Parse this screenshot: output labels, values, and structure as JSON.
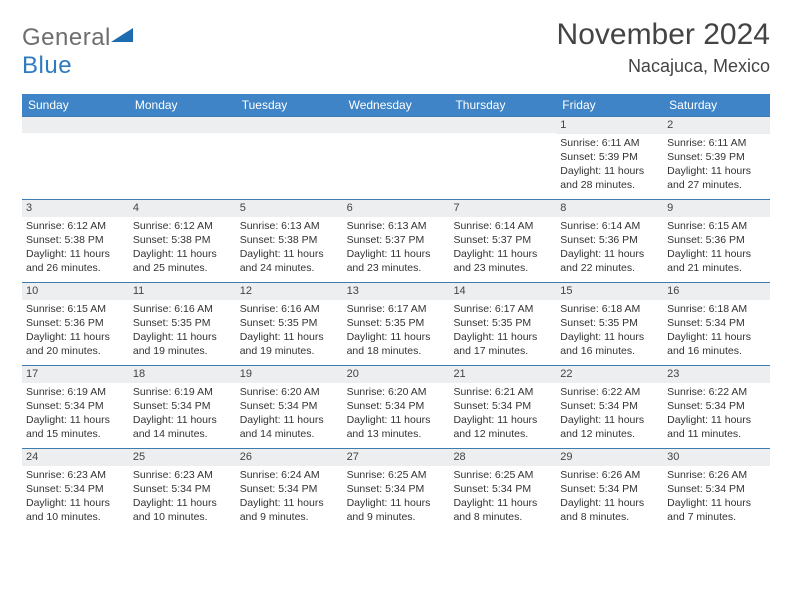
{
  "logo": {
    "text_gray": "General",
    "text_blue": "Blue"
  },
  "header": {
    "month_title": "November 2024",
    "location": "Nacajuca, Mexico",
    "month_title_fontsize": 30,
    "location_fontsize": 18,
    "text_color": "#444444"
  },
  "theme": {
    "header_bg": "#3e84c6",
    "header_text": "#ffffff",
    "row_border": "#3e7bb0",
    "dayband_bg": "#eceef0",
    "body_text": "#333333",
    "logo_gray": "#6e6e6e",
    "logo_blue": "#2f7bbf",
    "logo_triangle": "#1f6bb0",
    "page_bg": "#ffffff",
    "cell_fontsize": 10.5,
    "header_fontsize": 12
  },
  "day_labels": [
    "Sunday",
    "Monday",
    "Tuesday",
    "Wednesday",
    "Thursday",
    "Friday",
    "Saturday"
  ],
  "weeks": [
    [
      {
        "n": "",
        "sunrise": "",
        "sunset": "",
        "daylight": ""
      },
      {
        "n": "",
        "sunrise": "",
        "sunset": "",
        "daylight": ""
      },
      {
        "n": "",
        "sunrise": "",
        "sunset": "",
        "daylight": ""
      },
      {
        "n": "",
        "sunrise": "",
        "sunset": "",
        "daylight": ""
      },
      {
        "n": "",
        "sunrise": "",
        "sunset": "",
        "daylight": ""
      },
      {
        "n": "1",
        "sunrise": "Sunrise: 6:11 AM",
        "sunset": "Sunset: 5:39 PM",
        "daylight": "Daylight: 11 hours and 28 minutes."
      },
      {
        "n": "2",
        "sunrise": "Sunrise: 6:11 AM",
        "sunset": "Sunset: 5:39 PM",
        "daylight": "Daylight: 11 hours and 27 minutes."
      }
    ],
    [
      {
        "n": "3",
        "sunrise": "Sunrise: 6:12 AM",
        "sunset": "Sunset: 5:38 PM",
        "daylight": "Daylight: 11 hours and 26 minutes."
      },
      {
        "n": "4",
        "sunrise": "Sunrise: 6:12 AM",
        "sunset": "Sunset: 5:38 PM",
        "daylight": "Daylight: 11 hours and 25 minutes."
      },
      {
        "n": "5",
        "sunrise": "Sunrise: 6:13 AM",
        "sunset": "Sunset: 5:38 PM",
        "daylight": "Daylight: 11 hours and 24 minutes."
      },
      {
        "n": "6",
        "sunrise": "Sunrise: 6:13 AM",
        "sunset": "Sunset: 5:37 PM",
        "daylight": "Daylight: 11 hours and 23 minutes."
      },
      {
        "n": "7",
        "sunrise": "Sunrise: 6:14 AM",
        "sunset": "Sunset: 5:37 PM",
        "daylight": "Daylight: 11 hours and 23 minutes."
      },
      {
        "n": "8",
        "sunrise": "Sunrise: 6:14 AM",
        "sunset": "Sunset: 5:36 PM",
        "daylight": "Daylight: 11 hours and 22 minutes."
      },
      {
        "n": "9",
        "sunrise": "Sunrise: 6:15 AM",
        "sunset": "Sunset: 5:36 PM",
        "daylight": "Daylight: 11 hours and 21 minutes."
      }
    ],
    [
      {
        "n": "10",
        "sunrise": "Sunrise: 6:15 AM",
        "sunset": "Sunset: 5:36 PM",
        "daylight": "Daylight: 11 hours and 20 minutes."
      },
      {
        "n": "11",
        "sunrise": "Sunrise: 6:16 AM",
        "sunset": "Sunset: 5:35 PM",
        "daylight": "Daylight: 11 hours and 19 minutes."
      },
      {
        "n": "12",
        "sunrise": "Sunrise: 6:16 AM",
        "sunset": "Sunset: 5:35 PM",
        "daylight": "Daylight: 11 hours and 19 minutes."
      },
      {
        "n": "13",
        "sunrise": "Sunrise: 6:17 AM",
        "sunset": "Sunset: 5:35 PM",
        "daylight": "Daylight: 11 hours and 18 minutes."
      },
      {
        "n": "14",
        "sunrise": "Sunrise: 6:17 AM",
        "sunset": "Sunset: 5:35 PM",
        "daylight": "Daylight: 11 hours and 17 minutes."
      },
      {
        "n": "15",
        "sunrise": "Sunrise: 6:18 AM",
        "sunset": "Sunset: 5:35 PM",
        "daylight": "Daylight: 11 hours and 16 minutes."
      },
      {
        "n": "16",
        "sunrise": "Sunrise: 6:18 AM",
        "sunset": "Sunset: 5:34 PM",
        "daylight": "Daylight: 11 hours and 16 minutes."
      }
    ],
    [
      {
        "n": "17",
        "sunrise": "Sunrise: 6:19 AM",
        "sunset": "Sunset: 5:34 PM",
        "daylight": "Daylight: 11 hours and 15 minutes."
      },
      {
        "n": "18",
        "sunrise": "Sunrise: 6:19 AM",
        "sunset": "Sunset: 5:34 PM",
        "daylight": "Daylight: 11 hours and 14 minutes."
      },
      {
        "n": "19",
        "sunrise": "Sunrise: 6:20 AM",
        "sunset": "Sunset: 5:34 PM",
        "daylight": "Daylight: 11 hours and 14 minutes."
      },
      {
        "n": "20",
        "sunrise": "Sunrise: 6:20 AM",
        "sunset": "Sunset: 5:34 PM",
        "daylight": "Daylight: 11 hours and 13 minutes."
      },
      {
        "n": "21",
        "sunrise": "Sunrise: 6:21 AM",
        "sunset": "Sunset: 5:34 PM",
        "daylight": "Daylight: 11 hours and 12 minutes."
      },
      {
        "n": "22",
        "sunrise": "Sunrise: 6:22 AM",
        "sunset": "Sunset: 5:34 PM",
        "daylight": "Daylight: 11 hours and 12 minutes."
      },
      {
        "n": "23",
        "sunrise": "Sunrise: 6:22 AM",
        "sunset": "Sunset: 5:34 PM",
        "daylight": "Daylight: 11 hours and 11 minutes."
      }
    ],
    [
      {
        "n": "24",
        "sunrise": "Sunrise: 6:23 AM",
        "sunset": "Sunset: 5:34 PM",
        "daylight": "Daylight: 11 hours and 10 minutes."
      },
      {
        "n": "25",
        "sunrise": "Sunrise: 6:23 AM",
        "sunset": "Sunset: 5:34 PM",
        "daylight": "Daylight: 11 hours and 10 minutes."
      },
      {
        "n": "26",
        "sunrise": "Sunrise: 6:24 AM",
        "sunset": "Sunset: 5:34 PM",
        "daylight": "Daylight: 11 hours and 9 minutes."
      },
      {
        "n": "27",
        "sunrise": "Sunrise: 6:25 AM",
        "sunset": "Sunset: 5:34 PM",
        "daylight": "Daylight: 11 hours and 9 minutes."
      },
      {
        "n": "28",
        "sunrise": "Sunrise: 6:25 AM",
        "sunset": "Sunset: 5:34 PM",
        "daylight": "Daylight: 11 hours and 8 minutes."
      },
      {
        "n": "29",
        "sunrise": "Sunrise: 6:26 AM",
        "sunset": "Sunset: 5:34 PM",
        "daylight": "Daylight: 11 hours and 8 minutes."
      },
      {
        "n": "30",
        "sunrise": "Sunrise: 6:26 AM",
        "sunset": "Sunset: 5:34 PM",
        "daylight": "Daylight: 11 hours and 7 minutes."
      }
    ]
  ]
}
